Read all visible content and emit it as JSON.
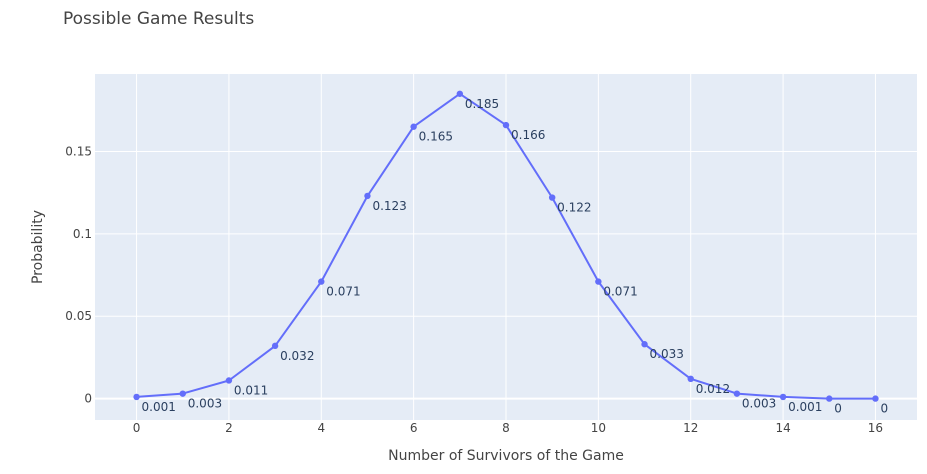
{
  "chart_data": {
    "type": "line",
    "title": "Possible Game Results",
    "xlabel": "Number of Survivors of the Game",
    "ylabel": "Probability",
    "x": [
      0,
      1,
      2,
      3,
      4,
      5,
      6,
      7,
      8,
      9,
      10,
      11,
      12,
      13,
      14,
      15,
      16
    ],
    "series": [
      {
        "values": [
          0.001,
          0.003,
          0.011,
          0.032,
          0.071,
          0.123,
          0.165,
          0.185,
          0.166,
          0.122,
          0.071,
          0.033,
          0.012,
          0.003,
          0.001,
          0,
          0
        ],
        "labels": [
          "0.001",
          "0.003",
          "0.011",
          "0.032",
          "0.071",
          "0.123",
          "0.165",
          "0.185",
          "0.166",
          "0.122",
          "0.071",
          "0.033",
          "0.012",
          "0.003",
          "0.001",
          "0",
          "0"
        ],
        "color": "#636efa"
      }
    ],
    "xlim": [
      -0.9,
      16.9
    ],
    "ylim": [
      -0.013,
      0.197
    ],
    "xticks": [
      0,
      2,
      4,
      6,
      8,
      10,
      12,
      14,
      16
    ],
    "xtick_labels": [
      "0",
      "2",
      "4",
      "6",
      "8",
      "10",
      "12",
      "14",
      "16"
    ],
    "yticks": [
      0,
      0.05,
      0.1,
      0.15
    ],
    "ytick_labels": [
      "0",
      "0.05",
      "0.1",
      "0.15"
    ],
    "grid": true,
    "plot_background": "#e5ecf6",
    "grid_color": "#ffffff"
  }
}
